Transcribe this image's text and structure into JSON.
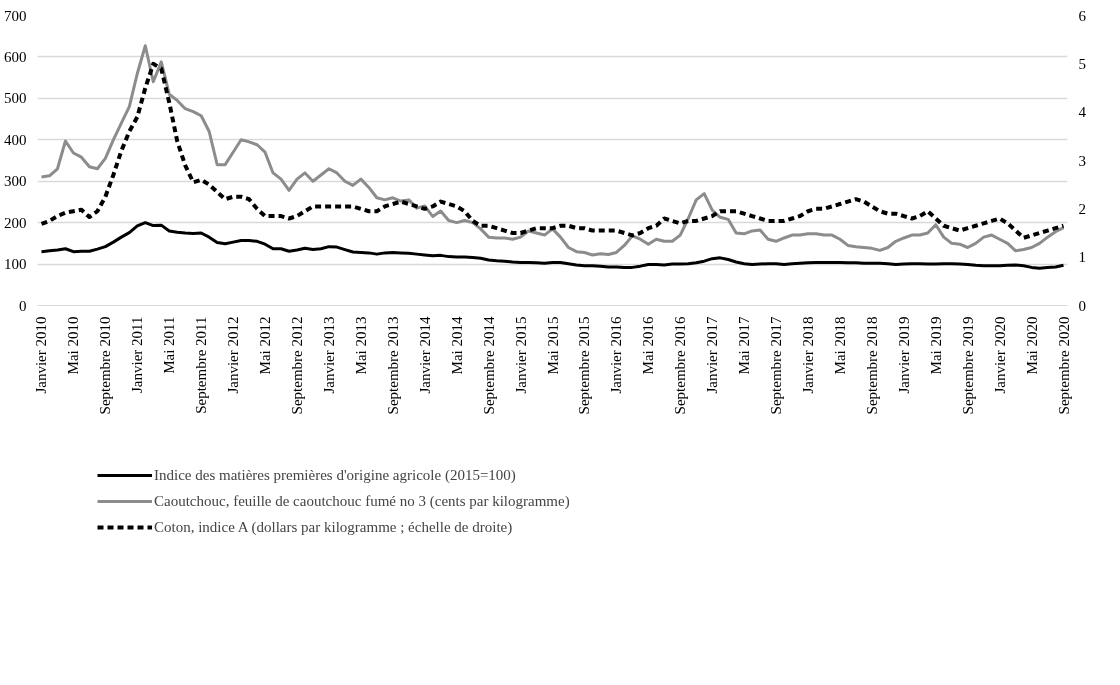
{
  "chart_data": {
    "type": "line",
    "legend": "bottom",
    "grid": "y",
    "ylim": [
      0,
      700
    ],
    "yticks": [
      0,
      100,
      200,
      300,
      400,
      500,
      600,
      700
    ],
    "y2lim": [
      0,
      6
    ],
    "y2ticks": [
      0,
      1,
      2,
      3,
      4,
      5,
      6
    ],
    "categories": [
      "Janvier 2010",
      null,
      null,
      null,
      "Mai 2010",
      null,
      null,
      null,
      "Septembre 2010",
      null,
      null,
      null,
      "Janvier 2011",
      null,
      null,
      null,
      "Mai 2011",
      null,
      null,
      null,
      "Septembre 2011",
      null,
      null,
      null,
      "Janvier 2012",
      null,
      null,
      null,
      "Mai 2012",
      null,
      null,
      null,
      "Septembre 2012",
      null,
      null,
      null,
      "Janvier 2013",
      null,
      null,
      null,
      "Mai 2013",
      null,
      null,
      null,
      "Septembre 2013",
      null,
      null,
      null,
      "Janvier 2014",
      null,
      null,
      null,
      "Mai 2014",
      null,
      null,
      null,
      "Septembre 2014",
      null,
      null,
      null,
      "Janvier 2015",
      null,
      null,
      null,
      "Mai 2015",
      null,
      null,
      null,
      "Septembre 2015",
      null,
      null,
      null,
      "Janvier 2016",
      null,
      null,
      null,
      "Mai 2016",
      null,
      null,
      null,
      "Septembre 2016",
      null,
      null,
      null,
      "Janvier 2017",
      null,
      null,
      null,
      "Mai 2017",
      null,
      null,
      null,
      "Septembre 2017",
      null,
      null,
      null,
      "Janvier 2018",
      null,
      null,
      null,
      "Mai 2018",
      null,
      null,
      null,
      "Septembre 2018",
      null,
      null,
      null,
      "Janvier 2019",
      null,
      null,
      null,
      "Mai 2019",
      null,
      null,
      null,
      "Septembre 2019",
      null,
      null,
      null,
      "Janvier 2020",
      null,
      null,
      null,
      "Mai 2020",
      null,
      null,
      null,
      "Septembre 2020"
    ],
    "series": [
      {
        "name": "Indice des matières premières d'origine agricole (2015=100)",
        "color": "#000000",
        "line_style": "solid",
        "values": [
          130,
          132,
          134,
          137,
          130,
          131,
          131,
          136,
          142,
          153,
          165,
          176,
          192,
          200,
          193,
          194,
          180,
          177,
          175,
          174,
          175,
          165,
          152,
          149,
          153,
          157,
          157,
          155,
          148,
          137,
          137,
          131,
          134,
          138,
          135,
          137,
          142,
          141,
          135,
          129,
          128,
          127,
          124,
          127,
          128,
          127,
          126,
          124,
          122,
          120,
          121,
          118,
          117,
          117,
          116,
          114,
          110,
          108,
          107,
          105,
          104,
          104,
          103,
          102,
          104,
          104,
          101,
          98,
          96,
          96,
          95,
          93,
          93,
          92,
          92,
          95,
          99,
          99,
          98,
          100,
          100,
          101,
          103,
          107,
          113,
          115,
          111,
          105,
          101,
          99,
          100,
          101,
          101,
          99,
          101,
          102,
          103,
          104,
          104,
          104,
          104,
          103,
          103,
          102,
          102,
          102,
          101,
          99,
          100,
          101,
          101,
          100,
          100,
          101,
          101,
          100,
          99,
          97,
          96,
          96,
          96,
          97,
          98,
          96,
          92,
          90,
          92,
          93,
          97
        ]
      },
      {
        "name": "Caoutchouc, feuille de caoutchouc fumé no 3 (cents par kilogramme)",
        "color": "#8c8c8c",
        "line_style": "solid",
        "values": [
          310,
          313,
          330,
          397,
          368,
          358,
          335,
          330,
          355,
          400,
          440,
          480,
          560,
          627,
          540,
          588,
          510,
          495,
          475,
          468,
          458,
          420,
          340,
          340,
          370,
          400,
          395,
          388,
          370,
          320,
          305,
          278,
          305,
          320,
          300,
          315,
          330,
          320,
          300,
          290,
          305,
          285,
          260,
          255,
          260,
          252,
          255,
          235,
          240,
          215,
          228,
          205,
          200,
          205,
          200,
          185,
          165,
          163,
          163,
          160,
          165,
          180,
          175,
          170,
          185,
          165,
          140,
          130,
          128,
          122,
          125,
          123,
          128,
          145,
          168,
          160,
          148,
          160,
          155,
          155,
          170,
          210,
          255,
          270,
          230,
          213,
          208,
          175,
          173,
          180,
          182,
          160,
          155,
          163,
          170,
          170,
          173,
          173,
          170,
          170,
          160,
          145,
          142,
          140,
          138,
          133,
          140,
          155,
          163,
          170,
          170,
          175,
          195,
          165,
          150,
          148,
          140,
          150,
          165,
          170,
          160,
          150,
          132,
          135,
          140,
          150,
          165,
          178,
          188
        ]
      },
      {
        "name": "Coton, indice A (dollars par kilogramme ; échelle de droite)",
        "color": "#000000",
        "line_style": "dashed",
        "axis": "y2",
        "values": [
          1.69,
          1.75,
          1.85,
          1.92,
          1.95,
          1.98,
          1.83,
          1.95,
          2.25,
          2.7,
          3.2,
          3.6,
          3.9,
          4.5,
          5.0,
          4.9,
          4.2,
          3.4,
          2.9,
          2.55,
          2.6,
          2.5,
          2.35,
          2.2,
          2.25,
          2.25,
          2.2,
          2.0,
          1.85,
          1.85,
          1.85,
          1.8,
          1.85,
          1.95,
          2.05,
          2.05,
          2.05,
          2.05,
          2.05,
          2.05,
          2.0,
          1.95,
          1.95,
          2.05,
          2.1,
          2.15,
          2.1,
          2.05,
          2.0,
          2.05,
          2.15,
          2.1,
          2.05,
          1.95,
          1.75,
          1.65,
          1.65,
          1.6,
          1.55,
          1.5,
          1.5,
          1.55,
          1.6,
          1.6,
          1.6,
          1.65,
          1.65,
          1.6,
          1.6,
          1.55,
          1.55,
          1.55,
          1.55,
          1.5,
          1.45,
          1.5,
          1.6,
          1.65,
          1.8,
          1.75,
          1.7,
          1.75,
          1.75,
          1.8,
          1.85,
          1.95,
          1.95,
          1.95,
          1.9,
          1.85,
          1.8,
          1.75,
          1.75,
          1.75,
          1.8,
          1.85,
          1.95,
          2.0,
          2.0,
          2.05,
          2.1,
          2.15,
          2.2,
          2.15,
          2.05,
          1.95,
          1.9,
          1.9,
          1.85,
          1.8,
          1.85,
          1.95,
          1.8,
          1.65,
          1.6,
          1.55,
          1.6,
          1.65,
          1.7,
          1.75,
          1.8,
          1.7,
          1.55,
          1.4,
          1.45,
          1.5,
          1.55,
          1.6,
          1.65
        ]
      }
    ]
  }
}
